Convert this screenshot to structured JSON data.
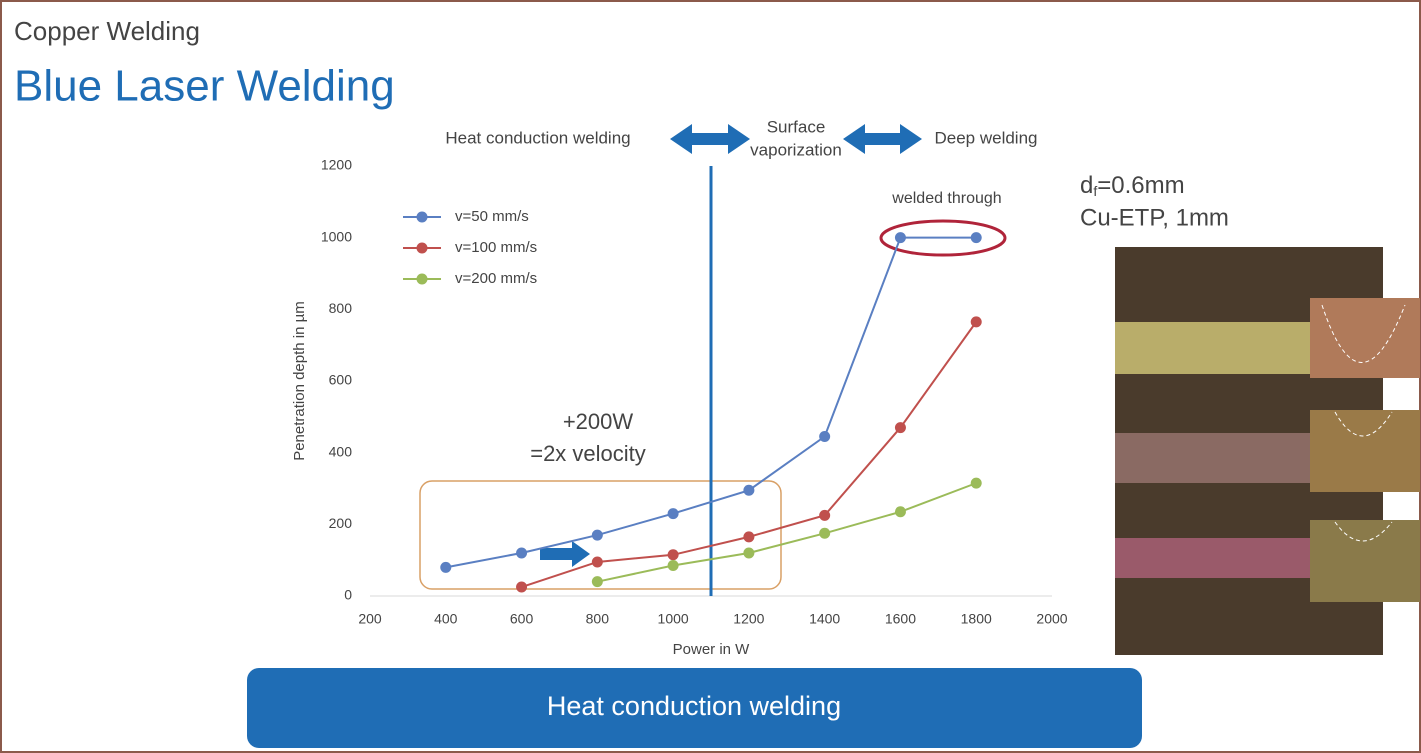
{
  "header": {
    "section": "Copper Welding",
    "title": "Blue Laser Welding"
  },
  "chart_data": {
    "type": "line",
    "x_label": "Power in W",
    "y_label": "Penetration depth in µm",
    "regions": [
      {
        "lines": [
          "Heat conduction welding"
        ]
      },
      {
        "lines": [
          "Surface",
          "vaporization"
        ]
      },
      {
        "lines": [
          "Deep welding"
        ]
      }
    ],
    "annotations": [
      "welded through",
      "+200W",
      "=2x velocity"
    ],
    "x": [
      400,
      600,
      800,
      1000,
      1200,
      1400,
      1600,
      1800
    ],
    "series": [
      {
        "name": "v=50 mm/s",
        "color": "#5a7fc2",
        "values": [
          80,
          120,
          170,
          230,
          295,
          445,
          1000,
          1000
        ]
      },
      {
        "name": "v=100 mm/s",
        "color": "#c0504d",
        "values": [
          null,
          25,
          95,
          115,
          165,
          225,
          470,
          765
        ]
      },
      {
        "name": "v=200 mm/s",
        "color": "#9bbb59",
        "values": [
          null,
          null,
          40,
          85,
          120,
          175,
          235,
          315
        ]
      }
    ],
    "reference_line_x": 1100,
    "xlim": [
      200,
      2000
    ],
    "xticks": [
      200,
      400,
      600,
      800,
      1000,
      1200,
      1400,
      1600,
      1800,
      2000
    ],
    "ylim": [
      0,
      1200
    ],
    "yticks": [
      0,
      200,
      400,
      600,
      800,
      1000,
      1200
    ],
    "grid": false,
    "legend": "upper-left"
  },
  "side_text": {
    "symbol": "d",
    "subscript": "f",
    "rest": "=0.6mm",
    "material": "Cu-ETP, 1mm"
  },
  "banner": "Heat conduction welding"
}
